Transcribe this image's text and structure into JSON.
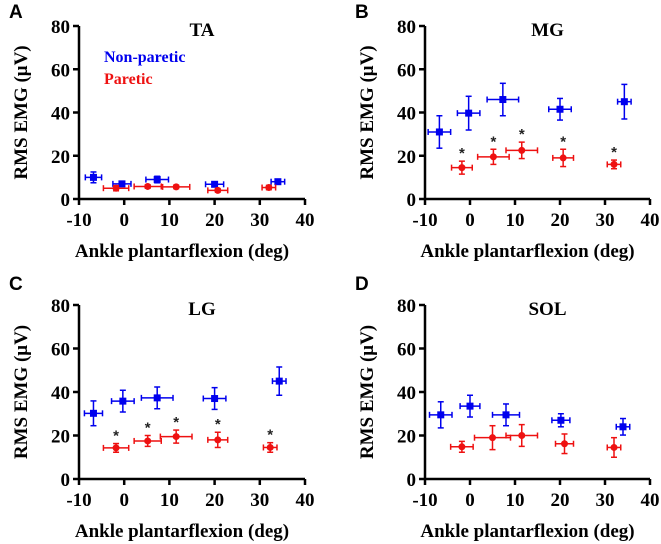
{
  "chart_data": [
    {
      "type": "scatter",
      "panel_letter": "A",
      "title": "TA",
      "xlabel": "Ankle plantarflexion (deg)",
      "ylabel": "RMS EMG (μV)",
      "xlim": [
        -10,
        40
      ],
      "ylim": [
        0,
        80
      ],
      "xticks": [
        "-10",
        "0",
        "10",
        "20",
        "30",
        "40"
      ],
      "yticks": [
        "0",
        "20",
        "40",
        "60",
        "80"
      ],
      "legend": {
        "position": "top-left",
        "entries": [
          "Non-paretic",
          "Paretic"
        ]
      },
      "series": [
        {
          "name": "Non-paretic",
          "color": "#0000ee",
          "marker": "square",
          "points": [
            {
              "x": -6.8,
              "xerr": 1.8,
              "y": 10,
              "yerr": 2.5
            },
            {
              "x": -0.5,
              "xerr": 2,
              "y": 7,
              "yerr": 1
            },
            {
              "x": 7.3,
              "xerr": 2.5,
              "y": 9,
              "yerr": 1.5
            },
            {
              "x": 20,
              "xerr": 2,
              "y": 6.8,
              "yerr": 0.8
            },
            {
              "x": 34,
              "xerr": 1.5,
              "y": 8,
              "yerr": 1
            }
          ]
        },
        {
          "name": "Paretic",
          "color": "#ee1111",
          "marker": "circle",
          "points": [
            {
              "x": -1.8,
              "xerr": 2.8,
              "y": 5,
              "yerr": 1.2
            },
            {
              "x": 5.2,
              "xerr": 3,
              "y": 5.8,
              "yerr": 0.8
            },
            {
              "x": 11.5,
              "xerr": 3,
              "y": 5.6,
              "yerr": 0.8
            },
            {
              "x": 20.7,
              "xerr": 2.2,
              "y": 4,
              "yerr": 0.8
            },
            {
              "x": 32,
              "xerr": 1.5,
              "y": 5.3,
              "yerr": 1
            }
          ]
        }
      ],
      "significance": []
    },
    {
      "type": "scatter",
      "panel_letter": "B",
      "title": "MG",
      "xlabel": "Ankle plantarflexion (deg)",
      "ylabel": "RMS EMG (μV)",
      "xlim": [
        -10,
        40
      ],
      "ylim": [
        0,
        80
      ],
      "xticks": [
        "-10",
        "0",
        "10",
        "20",
        "30",
        "40"
      ],
      "yticks": [
        "0",
        "20",
        "40",
        "60",
        "80"
      ],
      "series": [
        {
          "name": "Non-paretic",
          "color": "#0000ee",
          "marker": "square",
          "points": [
            {
              "x": -6.8,
              "xerr": 2.5,
              "y": 31,
              "yerr": 7.5
            },
            {
              "x": -0.3,
              "xerr": 2.5,
              "y": 39.7,
              "yerr": 7.8
            },
            {
              "x": 7.3,
              "xerr": 3.5,
              "y": 46,
              "yerr": 7.5
            },
            {
              "x": 20,
              "xerr": 2.5,
              "y": 41.5,
              "yerr": 5
            },
            {
              "x": 34.3,
              "xerr": 1.5,
              "y": 45,
              "yerr": 8
            }
          ]
        },
        {
          "name": "Paretic",
          "color": "#ee1111",
          "marker": "circle",
          "points": [
            {
              "x": -1.8,
              "xerr": 2.3,
              "y": 14.5,
              "yerr": 3
            },
            {
              "x": 5.2,
              "xerr": 3.5,
              "y": 19.5,
              "yerr": 3.5
            },
            {
              "x": 11.5,
              "xerr": 3.5,
              "y": 22.5,
              "yerr": 3.8
            },
            {
              "x": 20.7,
              "xerr": 2.3,
              "y": 19,
              "yerr": 4
            },
            {
              "x": 32,
              "xerr": 1.5,
              "y": 16,
              "yerr": 2
            }
          ]
        }
      ],
      "significance": [
        "*",
        "*",
        "*",
        "*",
        "*"
      ]
    },
    {
      "type": "scatter",
      "panel_letter": "C",
      "title": "LG",
      "xlabel": "Ankle plantarflexion (deg)",
      "ylabel": "RMS EMG (μV)",
      "xlim": [
        -10,
        40
      ],
      "ylim": [
        0,
        80
      ],
      "xticks": [
        "-10",
        "0",
        "10",
        "20",
        "30",
        "40"
      ],
      "yticks": [
        "0",
        "20",
        "40",
        "60",
        "80"
      ],
      "series": [
        {
          "name": "Non-paretic",
          "color": "#0000ee",
          "marker": "square",
          "points": [
            {
              "x": -6.8,
              "xerr": 2,
              "y": 30.2,
              "yerr": 5.7
            },
            {
              "x": -0.3,
              "xerr": 2.5,
              "y": 35.8,
              "yerr": 5
            },
            {
              "x": 7.3,
              "xerr": 3.5,
              "y": 37.3,
              "yerr": 5
            },
            {
              "x": 20,
              "xerr": 2.5,
              "y": 37,
              "yerr": 5
            },
            {
              "x": 34.3,
              "xerr": 1.5,
              "y": 45,
              "yerr": 6.5
            }
          ]
        },
        {
          "name": "Paretic",
          "color": "#ee1111",
          "marker": "circle",
          "points": [
            {
              "x": -1.8,
              "xerr": 2.8,
              "y": 14.3,
              "yerr": 2
            },
            {
              "x": 5.2,
              "xerr": 3,
              "y": 17.5,
              "yerr": 2.5
            },
            {
              "x": 11.5,
              "xerr": 3.5,
              "y": 19.5,
              "yerr": 3
            },
            {
              "x": 20.7,
              "xerr": 2.2,
              "y": 18,
              "yerr": 3.5
            },
            {
              "x": 32.3,
              "xerr": 1.5,
              "y": 14.5,
              "yerr": 2.2
            }
          ]
        }
      ],
      "significance": [
        "*",
        "*",
        "*",
        "*",
        "*"
      ]
    },
    {
      "type": "scatter",
      "panel_letter": "D",
      "title": "SOL",
      "xlabel": "Ankle plantarflexion (deg)",
      "ylabel": "RMS EMG (μV)",
      "xlim": [
        -10,
        40
      ],
      "ylim": [
        0,
        80
      ],
      "xticks": [
        "-10",
        "0",
        "10",
        "20",
        "30",
        "40"
      ],
      "yticks": [
        "0",
        "20",
        "40",
        "60",
        "80"
      ],
      "series": [
        {
          "name": "Non-paretic",
          "color": "#0000ee",
          "marker": "square",
          "points": [
            {
              "x": -6.5,
              "xerr": 2.5,
              "y": 29.5,
              "yerr": 6
            },
            {
              "x": 0,
              "xerr": 2.2,
              "y": 33.5,
              "yerr": 5
            },
            {
              "x": 8,
              "xerr": 3,
              "y": 29.5,
              "yerr": 5
            },
            {
              "x": 20.2,
              "xerr": 2,
              "y": 27,
              "yerr": 3
            },
            {
              "x": 34,
              "xerr": 1.5,
              "y": 24,
              "yerr": 3.8
            }
          ]
        },
        {
          "name": "Paretic",
          "color": "#ee1111",
          "marker": "circle",
          "points": [
            {
              "x": -1.8,
              "xerr": 2.5,
              "y": 14.8,
              "yerr": 2.5
            },
            {
              "x": 5,
              "xerr": 4,
              "y": 19,
              "yerr": 5.5
            },
            {
              "x": 11.5,
              "xerr": 3.5,
              "y": 20,
              "yerr": 5
            },
            {
              "x": 21,
              "xerr": 2,
              "y": 16.2,
              "yerr": 4.5
            },
            {
              "x": 32,
              "xerr": 1.5,
              "y": 14.5,
              "yerr": 4.5
            }
          ]
        }
      ],
      "significance": []
    }
  ]
}
